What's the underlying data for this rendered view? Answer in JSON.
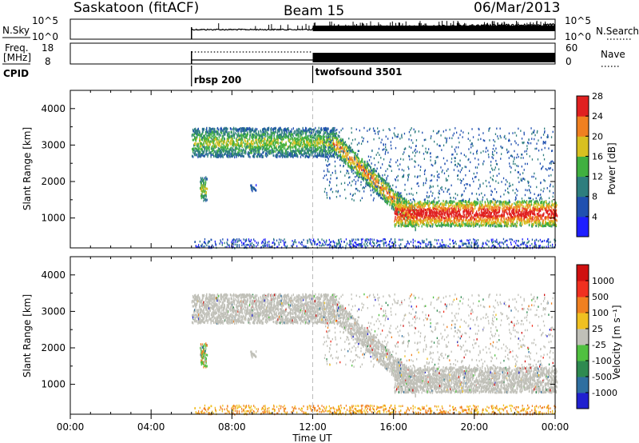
{
  "header": {
    "station": "Saskatoon (fitACF)",
    "beam": "Beam 15",
    "date": "06/Mar/2013"
  },
  "noise_panel": {
    "left_label": "N.Sky",
    "left_ticks": [
      "10^5",
      "10^0"
    ],
    "right_label": "N.Search",
    "right_ticks": [
      "10^5",
      "10^0"
    ]
  },
  "freq_panel": {
    "left_label_1": "Freq.",
    "left_label_2": "[MHz]",
    "left_ticks": [
      "18",
      "8"
    ],
    "right_label": "Nave",
    "right_ticks": [
      "60",
      "0"
    ]
  },
  "cpid": {
    "label": "CPID",
    "segments": [
      {
        "start_hour": 6.0,
        "name": "rbsp 200"
      },
      {
        "start_hour": 12.0,
        "name": "twofsound 3501"
      }
    ]
  },
  "power_panel": {
    "ylabel": "Slant Range [km]",
    "yticks": [
      "1000",
      "2000",
      "3000",
      "4000"
    ],
    "colorbar_label": "Power [dB]",
    "colorbar_ticks": [
      "4",
      "8",
      "12",
      "16",
      "20",
      "24",
      "28"
    ],
    "colors": [
      "#1e1eff",
      "#2050b0",
      "#2e7e7e",
      "#40b040",
      "#d8c020",
      "#f08020",
      "#e02020"
    ]
  },
  "velocity_panel": {
    "ylabel": "Slant Range [km]",
    "yticks": [
      "1000",
      "2000",
      "3000",
      "4000"
    ],
    "colorbar_label": "Velocity [m s⁻¹]",
    "colorbar_ticks": [
      "1000",
      "500",
      "100",
      "25",
      "-25",
      "-100",
      "-500",
      "-1000"
    ],
    "colors": [
      "#2020d0",
      "#2f6fa0",
      "#2e8a50",
      "#50c040",
      "#c0c0b8",
      "#f0c020",
      "#f08020",
      "#f03020",
      "#d01010"
    ]
  },
  "xaxis": {
    "label": "Time UT",
    "ticks": [
      "00:00",
      "04:00",
      "08:00",
      "12:00",
      "16:00",
      "20:00",
      "00:00"
    ]
  },
  "chart_data": {
    "type": "heatmap",
    "x_range_hours": [
      0,
      24
    ],
    "y_range_km": [
      180,
      4500
    ],
    "data_start_hour": 6.0,
    "mode_change_hour": 12.0,
    "power_echo_bands": [
      {
        "name": "far range band",
        "hours": [
          6.0,
          13.0
        ],
        "range_km": [
          2700,
          3500
        ],
        "power_db": 16
      },
      {
        "name": "descending band",
        "hours": [
          13.0,
          17.0
        ],
        "range_km_start": 3100,
        "range_km_end": 1000,
        "power_db": 22
      },
      {
        "name": "near range strong band",
        "hours": [
          16.0,
          24.0
        ],
        "range_km": [
          800,
          1500
        ],
        "power_db": 28
      },
      {
        "name": "patch",
        "hours": [
          6.4,
          6.7
        ],
        "range_km": [
          1500,
          2150
        ],
        "power_db": 18
      },
      {
        "name": "patch",
        "hours": [
          8.9,
          9.1
        ],
        "range_km": [
          1750,
          1950
        ],
        "power_db": 8
      }
    ],
    "velocity_summary": [
      {
        "name": "far range band",
        "hours": [
          6.0,
          13.0
        ],
        "velocity_ms": 0
      },
      {
        "name": "near range band",
        "hours": [
          13.0,
          24.0
        ],
        "velocity_ms": 0
      },
      {
        "name": "patch",
        "hours": [
          6.4,
          6.7
        ],
        "velocity_ms": 100
      }
    ]
  }
}
